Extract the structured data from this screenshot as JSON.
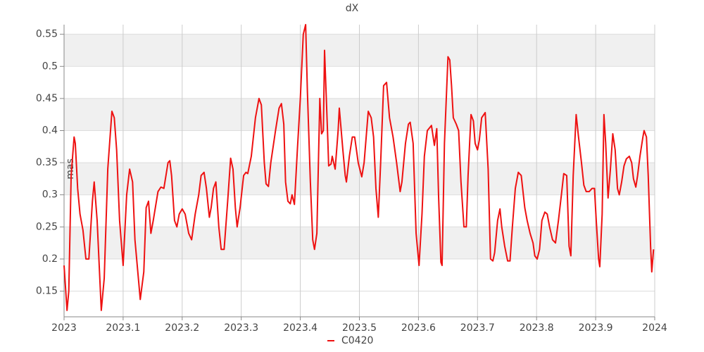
{
  "chart_data": {
    "type": "line",
    "title": "dX",
    "y_label": "mas",
    "xlim": [
      2023,
      2024
    ],
    "xticks": [
      2023,
      2023.1,
      2023.2,
      2023.3,
      2023.4,
      2023.5,
      2023.6,
      2023.7,
      2023.8,
      2023.9,
      2024
    ],
    "ylim": [
      0.11,
      0.565
    ],
    "yticks": [
      0.15,
      0.2,
      0.25,
      0.3,
      0.35,
      0.4,
      0.45,
      0.5,
      0.55
    ],
    "grid": true,
    "legend": "bottom",
    "x": [
      2023.0,
      2023.005,
      2023.008,
      2023.012,
      2023.017,
      2023.019,
      2023.023,
      2023.027,
      2023.032,
      2023.037,
      2023.042,
      2023.048,
      2023.051,
      2023.056,
      2023.063,
      2023.068,
      2023.074,
      2023.081,
      2023.085,
      2023.089,
      2023.094,
      2023.1,
      2023.106,
      2023.111,
      2023.116,
      2023.12,
      2023.129,
      2023.135,
      2023.139,
      2023.143,
      2023.147,
      2023.151,
      2023.159,
      2023.164,
      2023.169,
      2023.176,
      2023.179,
      2023.182,
      2023.187,
      2023.191,
      2023.195,
      2023.2,
      2023.205,
      2023.211,
      2023.216,
      2023.222,
      2023.228,
      2023.232,
      2023.237,
      2023.241,
      2023.246,
      2023.249,
      2023.253,
      2023.257,
      2023.262,
      2023.266,
      2023.271,
      2023.277,
      2023.282,
      2023.286,
      2023.29,
      2023.293,
      2023.298,
      2023.304,
      2023.308,
      2023.311,
      2023.317,
      2023.324,
      2023.33,
      2023.334,
      2023.339,
      2023.342,
      2023.346,
      2023.35,
      2023.358,
      2023.364,
      2023.368,
      2023.372,
      2023.375,
      2023.379,
      2023.383,
      2023.386,
      2023.39,
      2023.395,
      2023.4,
      2023.405,
      2023.409,
      2023.412,
      2023.417,
      2023.421,
      2023.424,
      2023.428,
      2023.433,
      2023.436,
      2023.439,
      2023.441,
      2023.446,
      2023.448,
      2023.452,
      2023.454,
      2023.459,
      2023.464,
      2023.466,
      2023.472,
      2023.476,
      2023.478,
      2023.483,
      2023.488,
      2023.492,
      2023.498,
      2023.504,
      2023.508,
      2023.515,
      2023.52,
      2023.524,
      2023.528,
      2023.532,
      2023.536,
      2023.541,
      2023.546,
      2023.551,
      2023.557,
      2023.563,
      2023.569,
      2023.572,
      2023.578,
      2023.583,
      2023.586,
      2023.591,
      2023.596,
      2023.601,
      2023.606,
      2023.61,
      2023.615,
      2023.622,
      2023.627,
      2023.631,
      2023.634,
      2023.638,
      2023.64,
      2023.644,
      2023.65,
      2023.653,
      2023.656,
      2023.659,
      2023.664,
      2023.668,
      2023.672,
      2023.677,
      2023.681,
      2023.684,
      2023.689,
      2023.693,
      2023.696,
      2023.7,
      2023.703,
      2023.707,
      2023.713,
      2023.718,
      2023.722,
      2023.726,
      2023.729,
      2023.734,
      2023.738,
      2023.741,
      2023.746,
      2023.751,
      2023.755,
      2023.759,
      2023.764,
      2023.769,
      2023.774,
      2023.78,
      2023.784,
      2023.789,
      2023.794,
      2023.797,
      2023.801,
      2023.805,
      2023.809,
      2023.814,
      2023.818,
      2023.822,
      2023.827,
      2023.832,
      2023.837,
      2023.842,
      2023.846,
      2023.851,
      2023.855,
      2023.858,
      2023.862,
      2023.867,
      2023.871,
      2023.876,
      2023.88,
      2023.884,
      2023.889,
      2023.894,
      2023.898,
      2023.901,
      2023.905,
      2023.907,
      2023.911,
      2023.914,
      2023.917,
      2023.921,
      2023.925,
      2023.929,
      2023.933,
      2023.937,
      2023.94,
      2023.944,
      2023.948,
      2023.952,
      2023.957,
      2023.961,
      2023.964,
      2023.968,
      2023.971,
      2023.975,
      2023.98,
      2023.982,
      2023.986,
      2023.989,
      2023.993,
      2023.995,
      2023.998
    ],
    "series": [
      {
        "name": "C0420",
        "color": "#ee1111",
        "values": [
          0.19,
          0.12,
          0.15,
          0.33,
          0.39,
          0.38,
          0.31,
          0.27,
          0.245,
          0.2,
          0.2,
          0.29,
          0.32,
          0.26,
          0.12,
          0.17,
          0.34,
          0.43,
          0.42,
          0.37,
          0.26,
          0.19,
          0.3,
          0.34,
          0.32,
          0.23,
          0.137,
          0.18,
          0.28,
          0.29,
          0.24,
          0.26,
          0.305,
          0.312,
          0.31,
          0.35,
          0.353,
          0.33,
          0.26,
          0.25,
          0.27,
          0.278,
          0.27,
          0.24,
          0.23,
          0.27,
          0.3,
          0.33,
          0.335,
          0.31,
          0.265,
          0.28,
          0.31,
          0.32,
          0.25,
          0.215,
          0.215,
          0.29,
          0.357,
          0.34,
          0.28,
          0.25,
          0.28,
          0.33,
          0.335,
          0.333,
          0.36,
          0.42,
          0.45,
          0.44,
          0.35,
          0.317,
          0.313,
          0.35,
          0.4,
          0.435,
          0.442,
          0.41,
          0.32,
          0.29,
          0.286,
          0.3,
          0.285,
          0.37,
          0.45,
          0.55,
          0.565,
          0.46,
          0.32,
          0.23,
          0.215,
          0.24,
          0.45,
          0.395,
          0.4,
          0.525,
          0.4,
          0.345,
          0.348,
          0.36,
          0.34,
          0.4,
          0.435,
          0.37,
          0.33,
          0.32,
          0.36,
          0.39,
          0.39,
          0.35,
          0.328,
          0.35,
          0.43,
          0.42,
          0.39,
          0.31,
          0.265,
          0.35,
          0.47,
          0.475,
          0.42,
          0.39,
          0.35,
          0.305,
          0.32,
          0.38,
          0.41,
          0.413,
          0.38,
          0.24,
          0.19,
          0.27,
          0.36,
          0.4,
          0.408,
          0.377,
          0.403,
          0.3,
          0.195,
          0.19,
          0.38,
          0.515,
          0.51,
          0.47,
          0.42,
          0.41,
          0.4,
          0.32,
          0.25,
          0.25,
          0.33,
          0.425,
          0.415,
          0.38,
          0.37,
          0.385,
          0.42,
          0.428,
          0.34,
          0.2,
          0.197,
          0.21,
          0.26,
          0.278,
          0.25,
          0.22,
          0.197,
          0.197,
          0.25,
          0.31,
          0.335,
          0.33,
          0.28,
          0.26,
          0.24,
          0.225,
          0.205,
          0.2,
          0.215,
          0.26,
          0.273,
          0.27,
          0.25,
          0.23,
          0.225,
          0.26,
          0.3,
          0.333,
          0.33,
          0.22,
          0.205,
          0.33,
          0.425,
          0.39,
          0.35,
          0.315,
          0.305,
          0.305,
          0.31,
          0.31,
          0.26,
          0.2,
          0.188,
          0.27,
          0.425,
          0.38,
          0.295,
          0.34,
          0.395,
          0.37,
          0.31,
          0.3,
          0.32,
          0.345,
          0.356,
          0.36,
          0.35,
          0.325,
          0.312,
          0.33,
          0.36,
          0.39,
          0.4,
          0.39,
          0.33,
          0.22,
          0.18,
          0.215
        ]
      }
    ]
  }
}
